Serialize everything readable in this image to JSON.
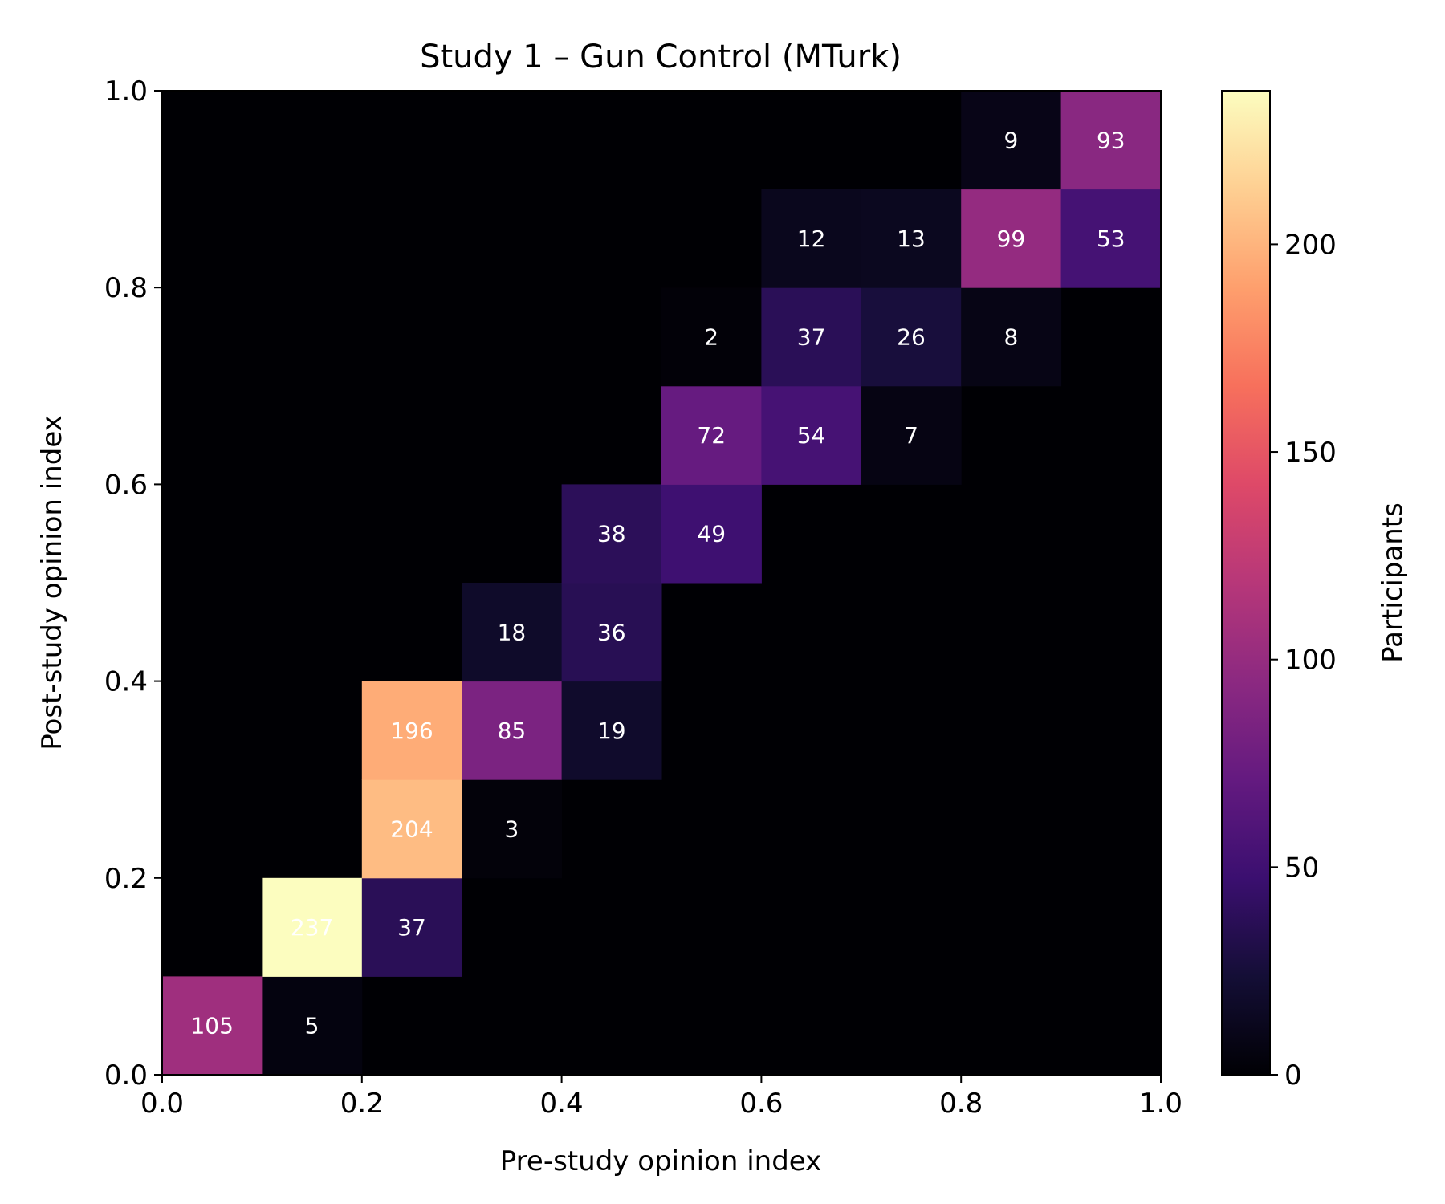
{
  "chart_data": {
    "type": "heatmap",
    "title": "Study 1 – Gun Control (MTurk)",
    "xlabel": "Pre-study opinion index",
    "ylabel": "Post-study opinion index",
    "colorbar_label": "Participants",
    "colormap": "magma",
    "xlim": [
      0.0,
      1.0
    ],
    "ylim": [
      0.0,
      1.0
    ],
    "vmin": 0,
    "vmax": 237,
    "bins": 10,
    "x_ticks": [
      "0.0",
      "0.2",
      "0.4",
      "0.6",
      "0.8",
      "1.0"
    ],
    "y_ticks": [
      "0.0",
      "0.2",
      "0.4",
      "0.6",
      "0.8",
      "1.0"
    ],
    "colorbar_ticks": [
      "0",
      "50",
      "100",
      "150",
      "200"
    ],
    "colorbar_tick_values": [
      0,
      50,
      100,
      150,
      200
    ],
    "cells": [
      {
        "x_bin": 0,
        "y_bin": 0,
        "count": 105
      },
      {
        "x_bin": 1,
        "y_bin": 0,
        "count": 5
      },
      {
        "x_bin": 1,
        "y_bin": 1,
        "count": 237
      },
      {
        "x_bin": 2,
        "y_bin": 1,
        "count": 37
      },
      {
        "x_bin": 2,
        "y_bin": 2,
        "count": 204
      },
      {
        "x_bin": 3,
        "y_bin": 2,
        "count": 3
      },
      {
        "x_bin": 2,
        "y_bin": 3,
        "count": 196
      },
      {
        "x_bin": 3,
        "y_bin": 3,
        "count": 85
      },
      {
        "x_bin": 4,
        "y_bin": 3,
        "count": 19
      },
      {
        "x_bin": 3,
        "y_bin": 4,
        "count": 18
      },
      {
        "x_bin": 4,
        "y_bin": 4,
        "count": 36
      },
      {
        "x_bin": 4,
        "y_bin": 5,
        "count": 38
      },
      {
        "x_bin": 5,
        "y_bin": 5,
        "count": 49
      },
      {
        "x_bin": 5,
        "y_bin": 6,
        "count": 72
      },
      {
        "x_bin": 6,
        "y_bin": 6,
        "count": 54
      },
      {
        "x_bin": 7,
        "y_bin": 6,
        "count": 7
      },
      {
        "x_bin": 5,
        "y_bin": 7,
        "count": 2
      },
      {
        "x_bin": 6,
        "y_bin": 7,
        "count": 37
      },
      {
        "x_bin": 7,
        "y_bin": 7,
        "count": 26
      },
      {
        "x_bin": 8,
        "y_bin": 7,
        "count": 8
      },
      {
        "x_bin": 6,
        "y_bin": 8,
        "count": 12
      },
      {
        "x_bin": 7,
        "y_bin": 8,
        "count": 13
      },
      {
        "x_bin": 8,
        "y_bin": 8,
        "count": 99
      },
      {
        "x_bin": 9,
        "y_bin": 8,
        "count": 53
      },
      {
        "x_bin": 8,
        "y_bin": 9,
        "count": 9
      },
      {
        "x_bin": 9,
        "y_bin": 9,
        "count": 93
      }
    ]
  }
}
